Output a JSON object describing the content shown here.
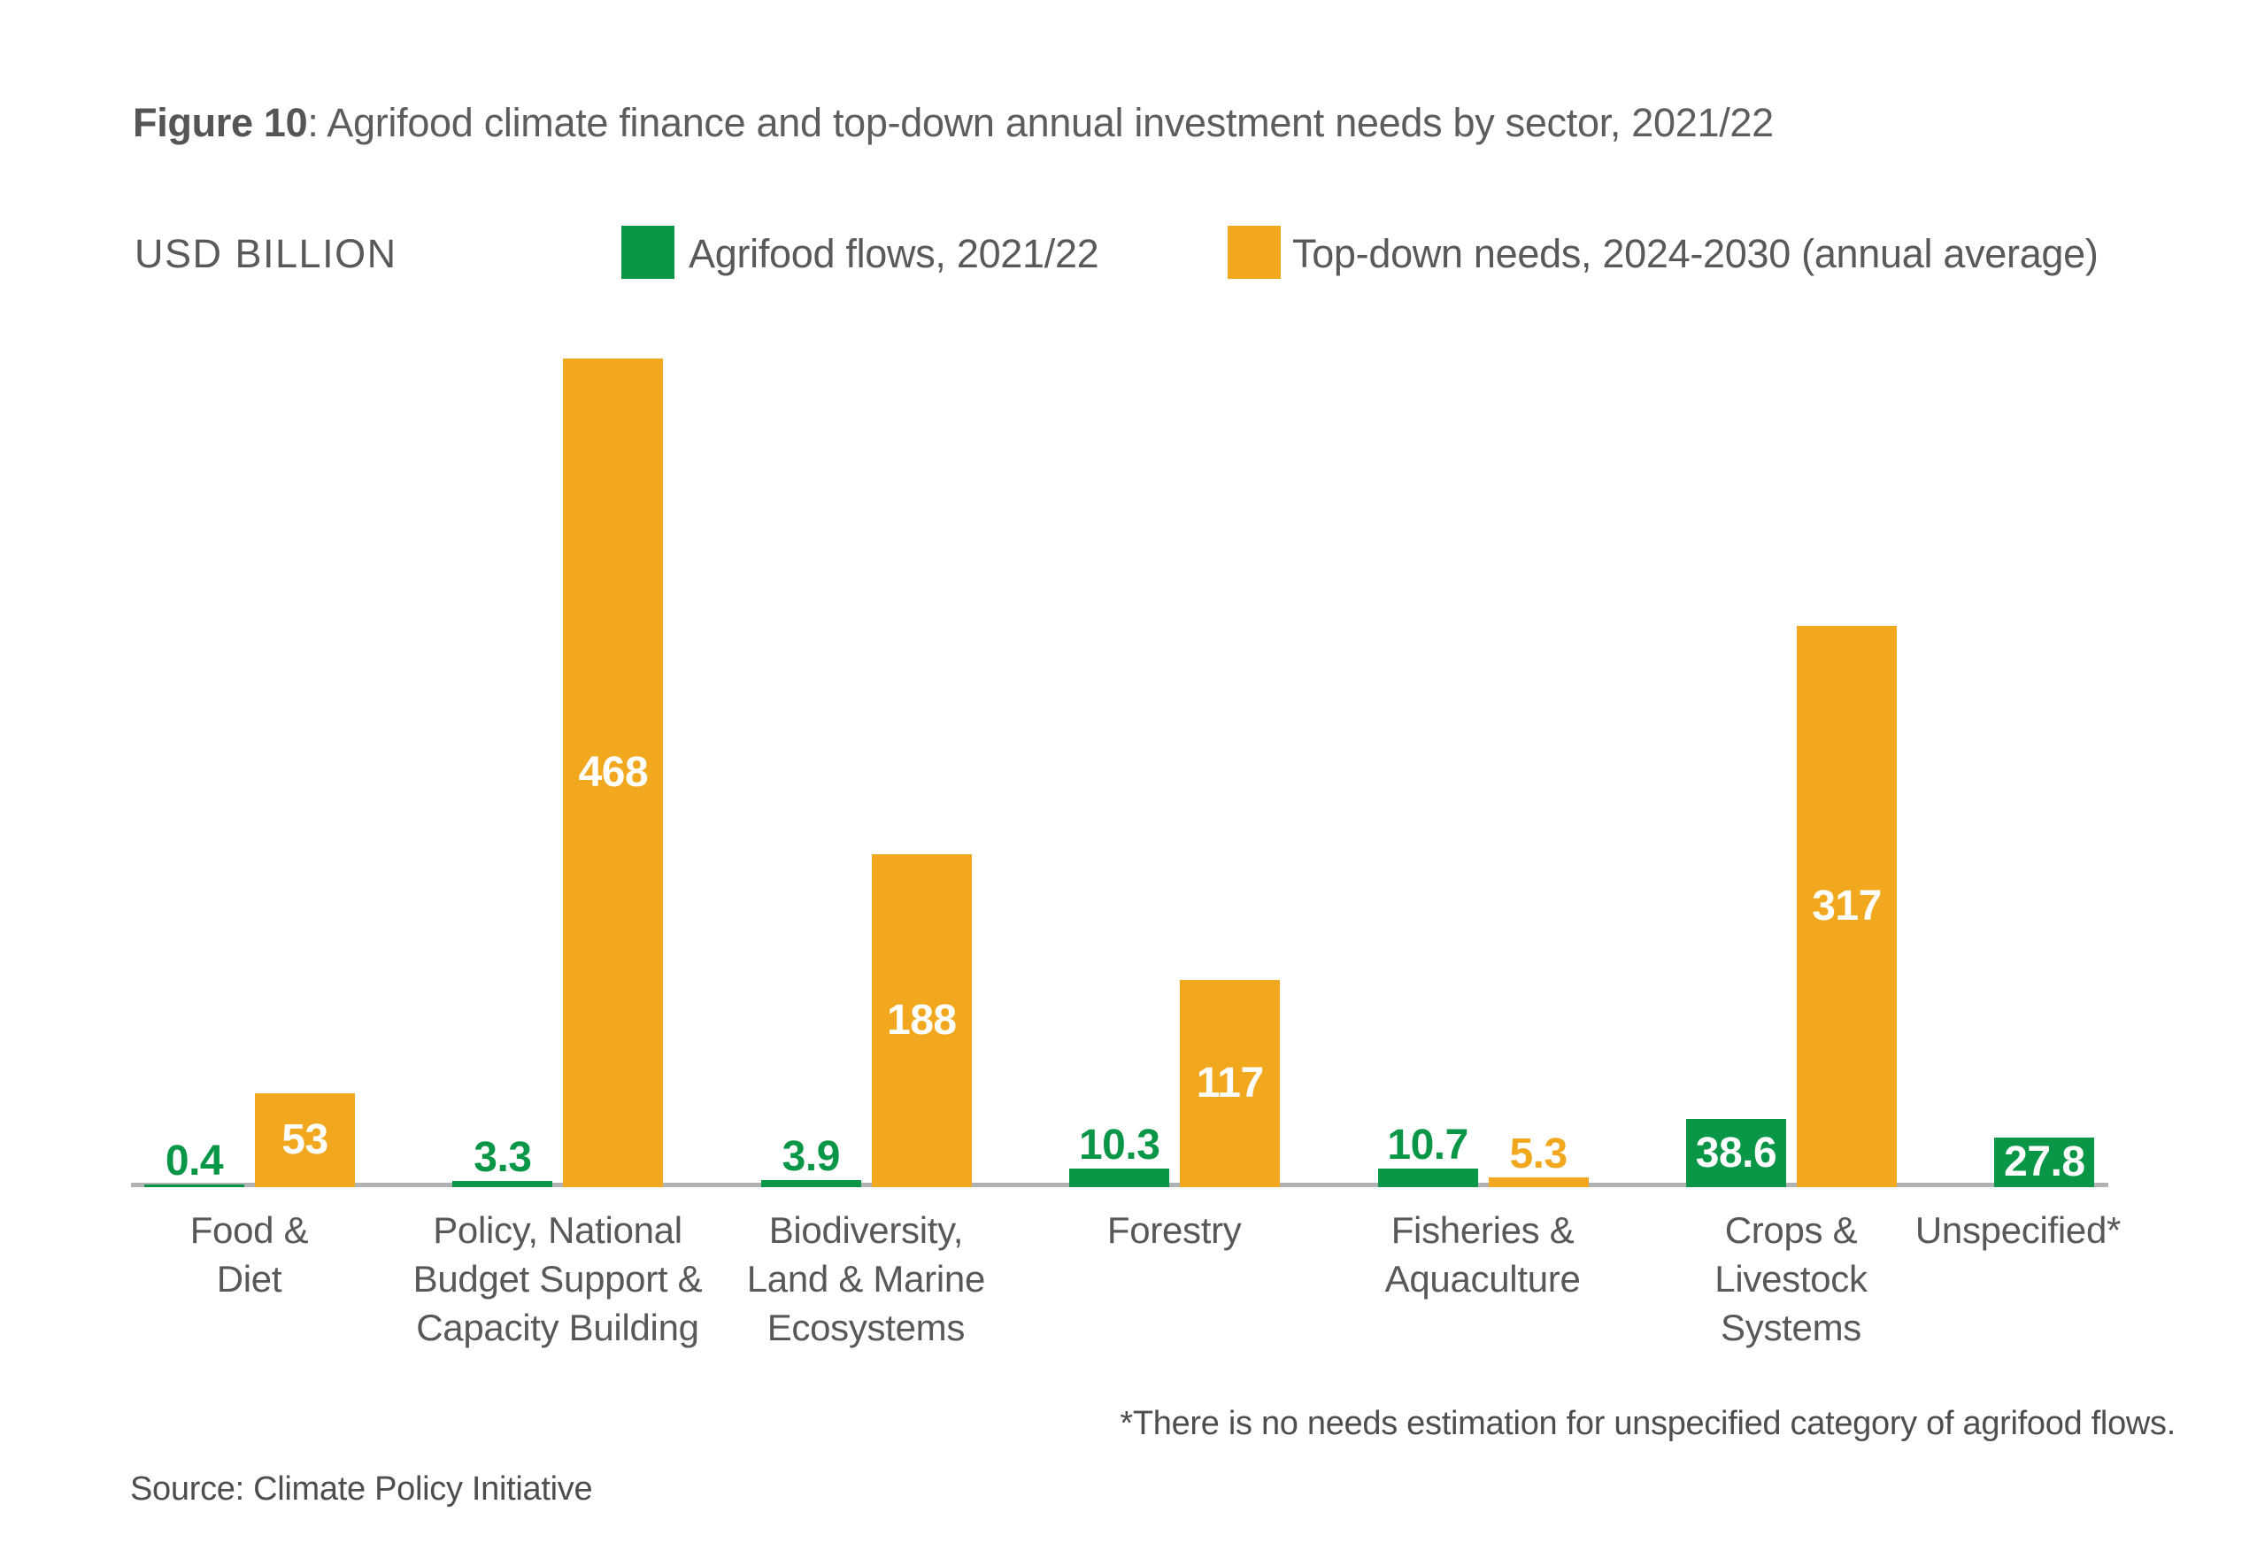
{
  "figure": {
    "label": "Figure 10",
    "title_rest": ": Agrifood climate finance and top-down annual investment needs by sector, 2021/22",
    "unit_label": "USD BILLION",
    "footnote": "*There is no needs estimation for unspecified category of agrifood flows.",
    "source": "Source: Climate Policy Initiative"
  },
  "legend": [
    {
      "label": "Agrifood flows, 2021/22",
      "color": "#0a9647"
    },
    {
      "label": "Top-down needs, 2024-2030 (annual average)",
      "color": "#f2a81e"
    }
  ],
  "colors": {
    "green": "#0a9647",
    "orange": "#f2a81e",
    "axis_gray": "#b1b2b4",
    "text_gray": "#58595b",
    "white": "#ffffff"
  },
  "chart_data": {
    "type": "bar",
    "title": "Agrifood climate finance and top-down annual investment needs by sector, 2021/22",
    "ylabel": "USD BILLION",
    "xlabel": "",
    "ylim": [
      0,
      470
    ],
    "grid": false,
    "legend_position": "top",
    "value_labels": true,
    "categories": [
      "Food & Diet",
      "Policy, National Budget Support & Capacity Building",
      "Biodiversity, Land & Marine Ecosystems",
      "Forestry",
      "Fisheries & Aquaculture",
      "Crops & Livestock Systems",
      "Unspecified*"
    ],
    "category_lines": [
      [
        "Food &",
        "Diet"
      ],
      [
        "Policy, National",
        "Budget Support &",
        "Capacity Building"
      ],
      [
        "Biodiversity,",
        "Land & Marine",
        "Ecosystems"
      ],
      [
        "Forestry"
      ],
      [
        "Fisheries &",
        "Aquaculture"
      ],
      [
        "Crops &",
        "Livestock",
        "Systems"
      ],
      [
        "Unspecified*"
      ]
    ],
    "series": [
      {
        "name": "Agrifood flows, 2021/22",
        "color": "#0a9647",
        "values": [
          0.4,
          3.3,
          3.9,
          10.3,
          10.7,
          38.6,
          27.8
        ]
      },
      {
        "name": "Top-down needs, 2024-2030 (annual average)",
        "color": "#f2a81e",
        "values": [
          53,
          468,
          188,
          117,
          5.3,
          317,
          null
        ]
      }
    ]
  }
}
